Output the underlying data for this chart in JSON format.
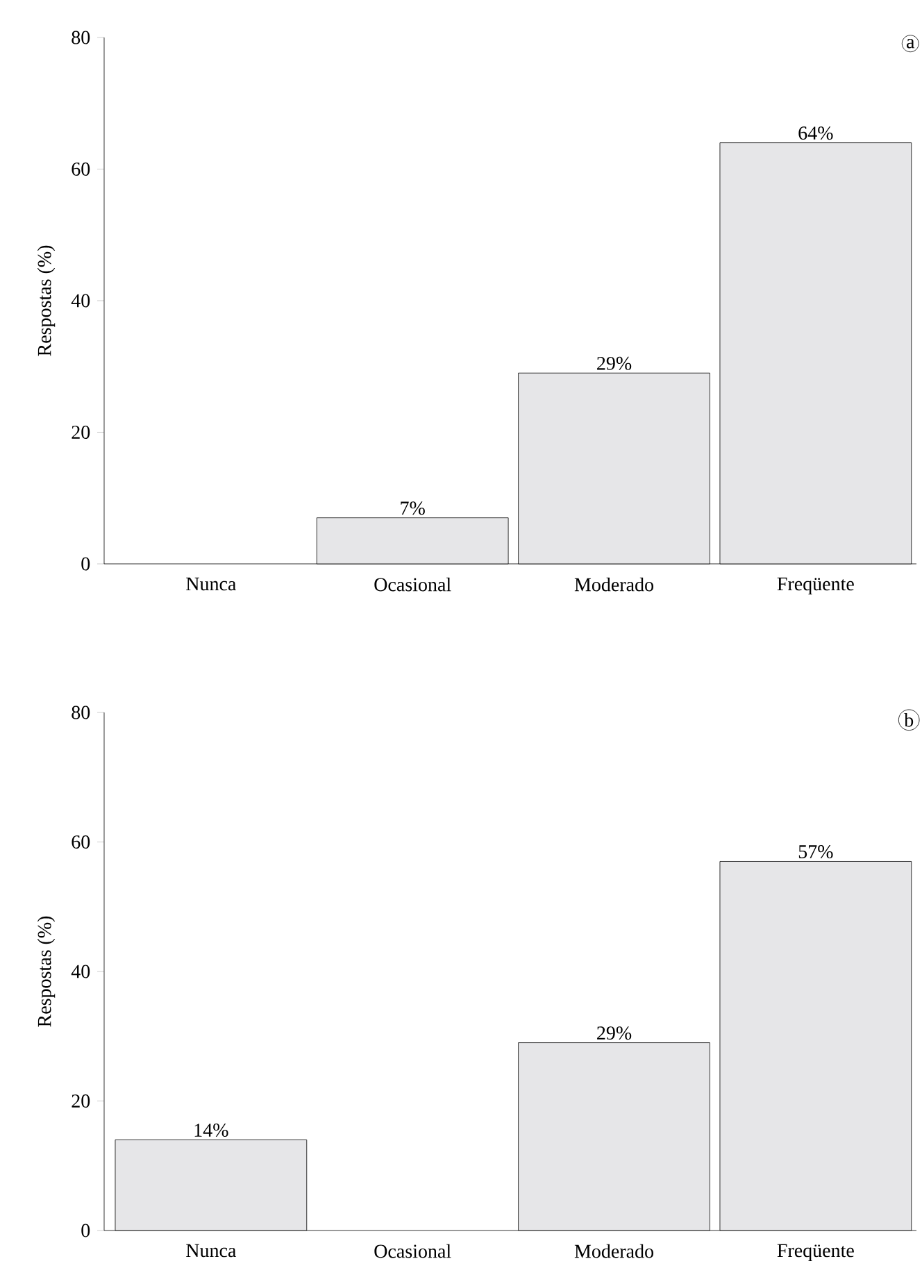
{
  "chart_data": [
    {
      "type": "bar",
      "categories": [
        "Nunca",
        "Ocasional",
        "Moderado",
        "Freqüente"
      ],
      "values": [
        null,
        7,
        29,
        64
      ],
      "value_labels": [
        null,
        "7%",
        "29%",
        "64%"
      ],
      "color": "#e6e6e8",
      "ylabel": "Respostas (%)",
      "ylim": [
        0,
        80
      ],
      "yticks": [
        0,
        20,
        40,
        60,
        80
      ],
      "annotations": [
        "a"
      ]
    },
    {
      "type": "bar",
      "categories": [
        "Nunca",
        "Ocasional",
        "Moderado",
        "Freqüente"
      ],
      "values": [
        14,
        null,
        29,
        57
      ],
      "value_labels": [
        "14%",
        null,
        "29%",
        "57%"
      ],
      "color": "#e6e6e8",
      "ylabel": "Respostas (%)",
      "ylim": [
        0,
        80
      ],
      "yticks": [
        0,
        20,
        40,
        60,
        80
      ],
      "annotations": [
        "b"
      ]
    }
  ]
}
